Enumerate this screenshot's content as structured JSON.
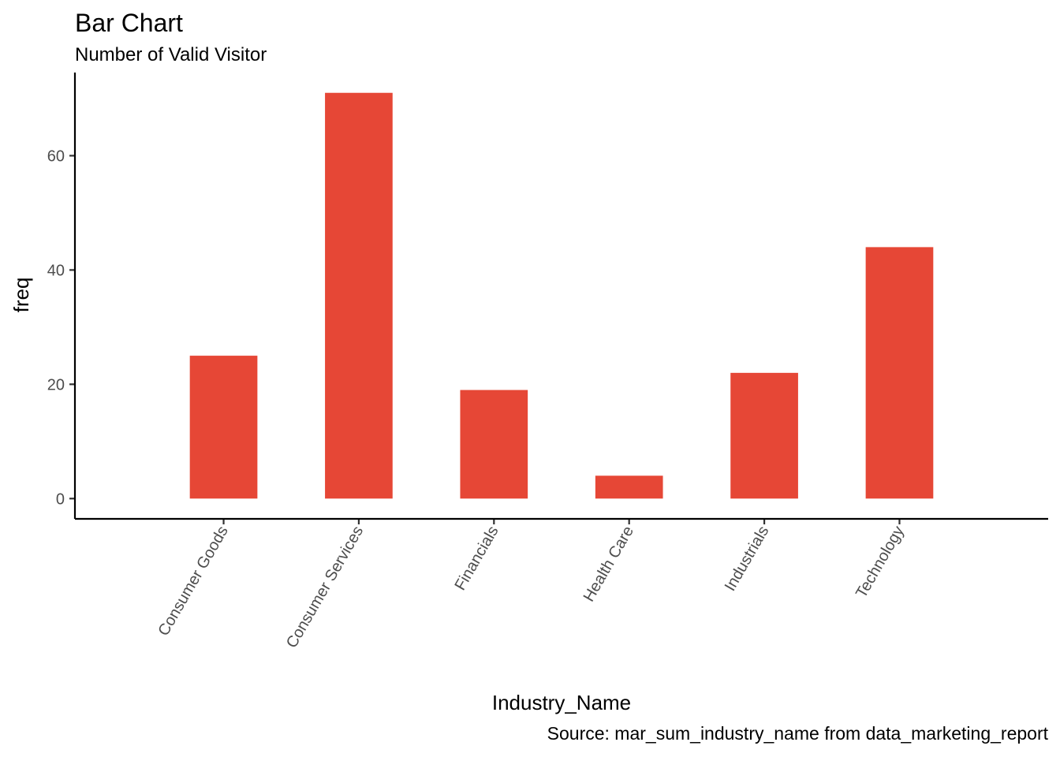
{
  "chart_data": {
    "type": "bar",
    "title": "Bar Chart",
    "subtitle": "Number of Valid Visitor",
    "xlabel": "Industry_Name",
    "ylabel": "freq",
    "caption": "Source: mar_sum_industry_name from data_marketing_report",
    "categories": [
      "Consumer Goods",
      "Consumer Services",
      "Financials",
      "Health Care",
      "Industrials",
      "Technology"
    ],
    "values": [
      25,
      71,
      19,
      4,
      22,
      44
    ],
    "y_ticks": [
      0,
      20,
      40,
      60
    ],
    "ylim": [
      -3.55,
      74.55
    ],
    "bar_color": "#E64736",
    "grid": false,
    "legend": "none"
  }
}
